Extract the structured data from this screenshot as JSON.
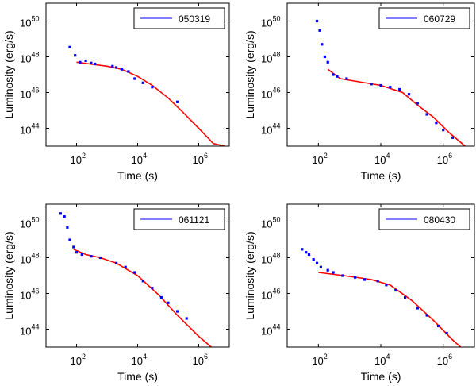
{
  "chart_data": [
    {
      "type": "scatter",
      "legend": "050319",
      "xlabel": "Time (s)",
      "ylabel": "Luminosity (erg/s)",
      "xscale": "log",
      "yscale": "log",
      "xlim": [
        10,
        10000000
      ],
      "ylim": [
        1e+43,
        1e+51
      ],
      "xtick_exponents": [
        "2",
        "4",
        "6"
      ],
      "ytick_exponents": [
        "44",
        "46",
        "48",
        "50"
      ],
      "data_color": "#0000ff",
      "fit_color": "#ff0000",
      "data": [
        [
          60,
          3.5e+48
        ],
        [
          90,
          1.2e+48
        ],
        [
          130,
          5e+47
        ],
        [
          200,
          6e+47
        ],
        [
          300,
          4.5e+47
        ],
        [
          400,
          4e+47
        ],
        [
          1500,
          3e+47
        ],
        [
          2000,
          2.5e+47
        ],
        [
          3000,
          2e+47
        ],
        [
          5000,
          1.5e+47
        ],
        [
          8000,
          6e+46
        ],
        [
          15000,
          3.5e+46
        ],
        [
          30000,
          2e+46
        ],
        [
          200000,
          3e+45
        ]
      ],
      "fit": [
        [
          100,
          5e+47
        ],
        [
          1000,
          3e+47
        ],
        [
          3000,
          2e+47
        ],
        [
          10000,
          8e+46
        ],
        [
          30000,
          2.5e+46
        ],
        [
          100000,
          5e+45
        ],
        [
          300000,
          8e+44
        ],
        [
          1000000,
          1e+44
        ],
        [
          3000000,
          1.4e+43
        ],
        [
          7000000,
          1e+43
        ]
      ]
    },
    {
      "type": "scatter",
      "legend": "060729",
      "xlabel": "Time (s)",
      "ylabel": "Luminosity (erg/s)",
      "xscale": "log",
      "yscale": "log",
      "xlim": [
        10,
        10000000
      ],
      "ylim": [
        1e+43,
        1e+51
      ],
      "xtick_exponents": [
        "2",
        "4",
        "6"
      ],
      "ytick_exponents": [
        "44",
        "46",
        "48",
        "50"
      ],
      "data_color": "#0000ff",
      "fit_color": "#ff0000",
      "data": [
        [
          90,
          1e+50
        ],
        [
          110,
          3e+49
        ],
        [
          130,
          5e+48
        ],
        [
          160,
          1e+48
        ],
        [
          200,
          5e+47
        ],
        [
          300,
          1e+47
        ],
        [
          400,
          8e+46
        ],
        [
          800,
          6e+46
        ],
        [
          5000,
          3e+46
        ],
        [
          10000,
          2.5e+46
        ],
        [
          20000,
          2e+46
        ],
        [
          40000,
          1.5e+46
        ],
        [
          80000,
          8e+45
        ],
        [
          150000,
          2.5e+45
        ],
        [
          300000,
          6e+44
        ],
        [
          600000,
          2e+44
        ],
        [
          1000000,
          8e+43
        ],
        [
          2000000,
          3e+43
        ]
      ],
      "fit": [
        [
          200,
          2e+47
        ],
        [
          500,
          6e+46
        ],
        [
          2000,
          4e+46
        ],
        [
          10000,
          2.5e+46
        ],
        [
          50000,
          1e+46
        ],
        [
          150000,
          2e+45
        ],
        [
          500000,
          4e+44
        ],
        [
          1500000,
          6e+43
        ],
        [
          5000000,
          1e+43
        ],
        [
          7000000,
          6e+42
        ]
      ]
    },
    {
      "type": "scatter",
      "legend": "061121",
      "xlabel": "Time (s)",
      "ylabel": "Luminosity (erg/s)",
      "xscale": "log",
      "yscale": "log",
      "xlim": [
        10,
        10000000
      ],
      "ylim": [
        1e+43,
        1e+51
      ],
      "xtick_exponents": [
        "2",
        "4",
        "6"
      ],
      "ytick_exponents": [
        "44",
        "46",
        "48",
        "50"
      ],
      "data_color": "#0000ff",
      "fit_color": "#ff0000",
      "data": [
        [
          30,
          3e+50
        ],
        [
          40,
          2e+50
        ],
        [
          50,
          5e+49
        ],
        [
          60,
          1e+49
        ],
        [
          80,
          4e+48
        ],
        [
          100,
          2e+48
        ],
        [
          150,
          1.5e+48
        ],
        [
          300,
          1.2e+48
        ],
        [
          600,
          1e+48
        ],
        [
          2000,
          5e+47
        ],
        [
          4000,
          3e+47
        ],
        [
          8000,
          1.5e+47
        ],
        [
          15000,
          5e+46
        ],
        [
          30000,
          2e+46
        ],
        [
          60000,
          6e+45
        ],
        [
          100000,
          3e+45
        ],
        [
          200000,
          1e+45
        ],
        [
          400000,
          4e+44
        ]
      ],
      "fit": [
        [
          80,
          3e+48
        ],
        [
          200,
          1.5e+48
        ],
        [
          600,
          1e+48
        ],
        [
          2000,
          5e+47
        ],
        [
          10000,
          1e+47
        ],
        [
          50000,
          8e+45
        ],
        [
          200000,
          6e+44
        ],
        [
          1000000,
          4e+43
        ],
        [
          3000000,
          8e+42
        ]
      ]
    },
    {
      "type": "scatter",
      "legend": "080430",
      "xlabel": "Time (s)",
      "ylabel": "Luminosity (erg/s)",
      "xscale": "log",
      "yscale": "log",
      "xlim": [
        10,
        10000000
      ],
      "ylim": [
        1e+43,
        1e+51
      ],
      "xtick_exponents": [
        "2",
        "4",
        "6"
      ],
      "ytick_exponents": [
        "44",
        "46",
        "48",
        "50"
      ],
      "data_color": "#0000ff",
      "fit_color": "#ff0000",
      "data": [
        [
          30,
          3e+48
        ],
        [
          40,
          2e+48
        ],
        [
          50,
          1.5e+48
        ],
        [
          70,
          8e+47
        ],
        [
          90,
          5e+47
        ],
        [
          120,
          3e+47
        ],
        [
          200,
          2e+47
        ],
        [
          300,
          1.5e+47
        ],
        [
          600,
          1e+47
        ],
        [
          1500,
          8e+46
        ],
        [
          3000,
          6e+46
        ],
        [
          8000,
          5e+46
        ],
        [
          15000,
          3e+46
        ],
        [
          30000,
          1.5e+46
        ],
        [
          60000,
          6e+45
        ],
        [
          150000,
          1.5e+45
        ],
        [
          300000,
          6e+44
        ],
        [
          700000,
          1.5e+44
        ],
        [
          1300000,
          6e+43
        ]
      ],
      "fit": [
        [
          100,
          1.5e+47
        ],
        [
          1000,
          9e+46
        ],
        [
          5000,
          6e+46
        ],
        [
          20000,
          3e+46
        ],
        [
          100000,
          4e+45
        ],
        [
          500000,
          3e+44
        ],
        [
          2000000,
          2.5e+43
        ],
        [
          5000000,
          6e+42
        ]
      ]
    }
  ]
}
